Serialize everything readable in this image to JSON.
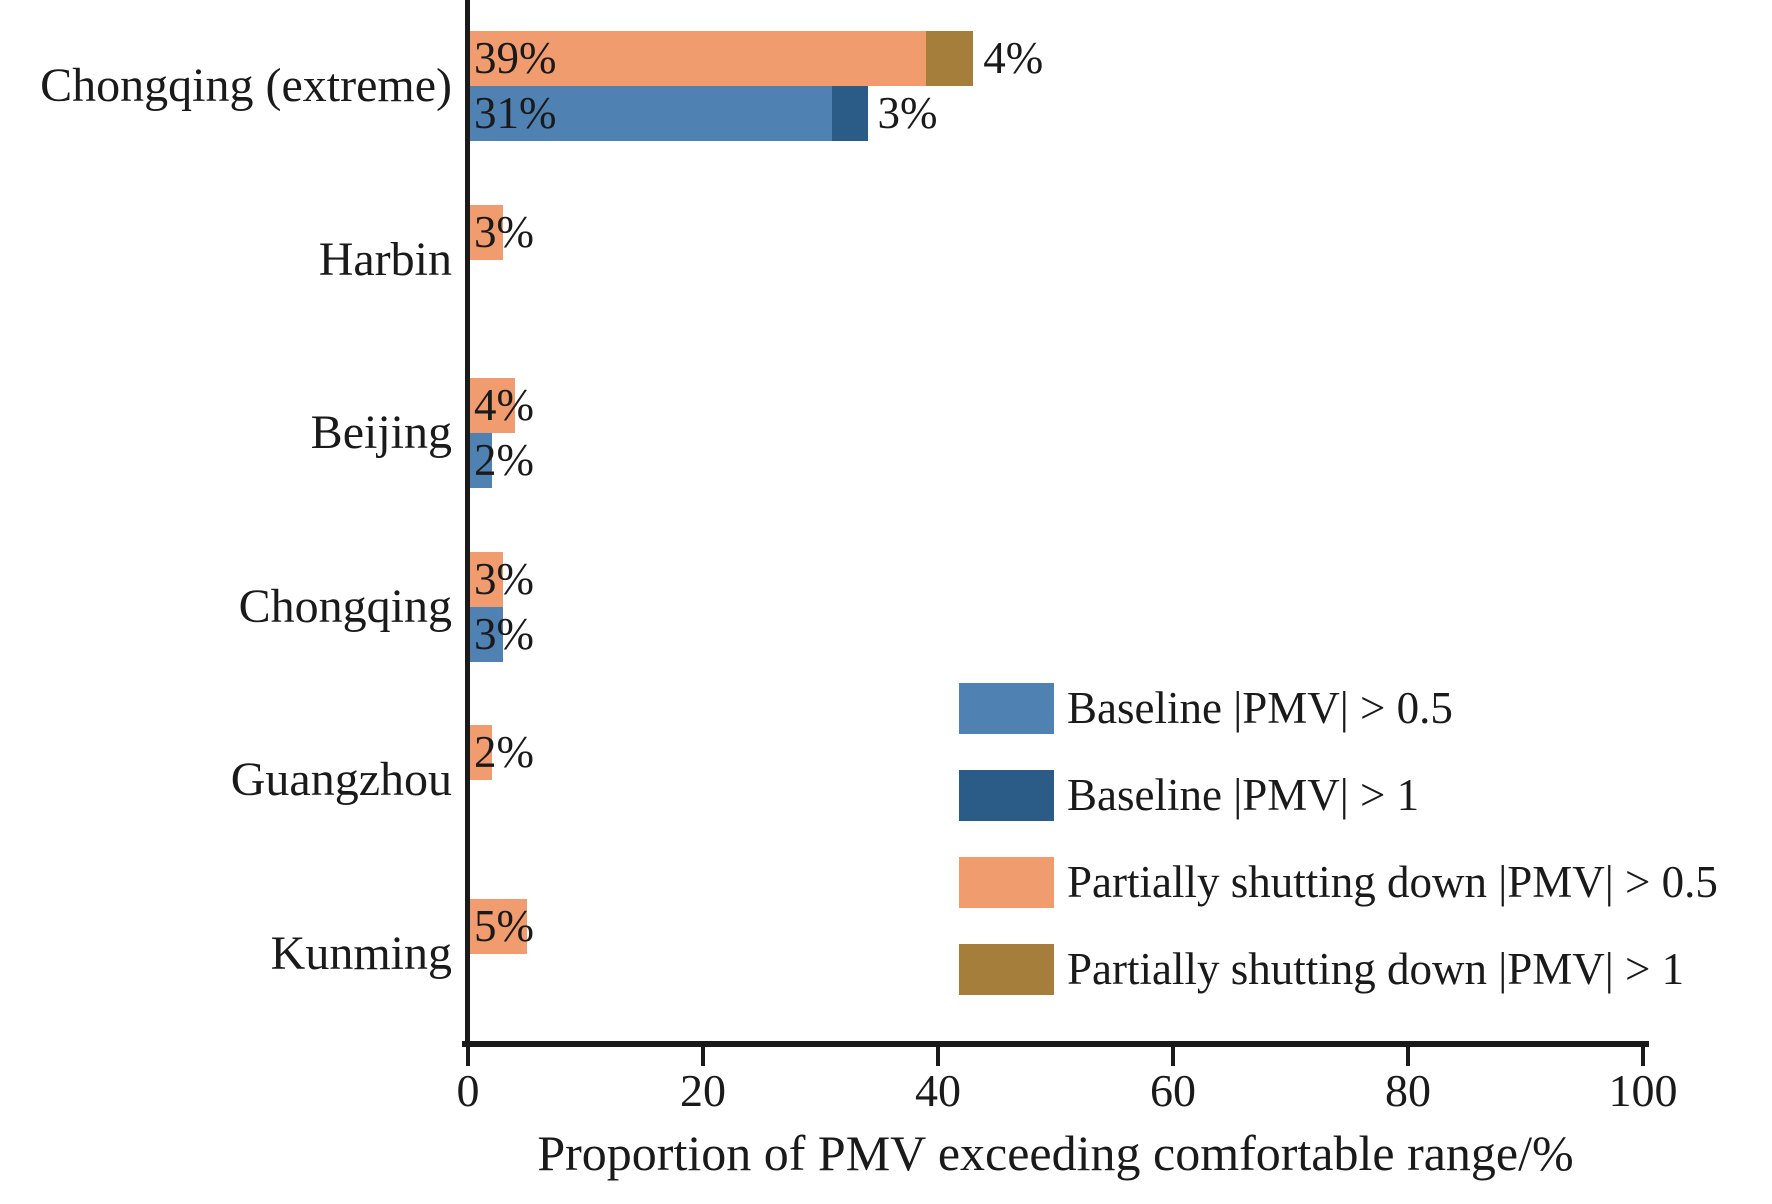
{
  "chart_data": {
    "type": "bar",
    "orientation": "horizontal",
    "title": "",
    "xlabel": "Proportion of PMV exceeding comfortable range/%",
    "xlim": [
      0,
      100
    ],
    "x_ticks": [
      "0",
      "20",
      "40",
      "60",
      "80",
      "100"
    ],
    "x_tick_values": [
      0,
      20,
      40,
      60,
      80,
      100
    ],
    "grid": false,
    "legend_position": "lower-right-inside",
    "value_label_suffix": "%",
    "categories": [
      "Chongqing (extreme)",
      "Harbin",
      "Beijing",
      "Chongqing",
      "Guangzhou",
      "Kunming"
    ],
    "series": [
      {
        "name": "Baseline |PMV| > 0.5",
        "role": "baseline-base",
        "row": "bottom",
        "color": "#4F81B2",
        "values": [
          31,
          0,
          2,
          3,
          0,
          0
        ],
        "labels": [
          "31%",
          "",
          "2%",
          "3%",
          "",
          ""
        ]
      },
      {
        "name": "Baseline |PMV| > 1",
        "role": "baseline-extension",
        "row": "bottom",
        "color": "#2B5B87",
        "values": [
          3,
          0,
          0,
          0,
          0,
          0
        ],
        "labels": [
          "3%",
          "",
          "",
          "",
          "",
          ""
        ]
      },
      {
        "name": "Partially shutting down |PMV| > 0.5",
        "role": "partial-base",
        "row": "top",
        "color": "#F09C6E",
        "values": [
          39,
          3,
          4,
          3,
          2,
          5
        ],
        "labels": [
          "39%",
          "3%",
          "4%",
          "3%",
          "2%",
          "5%"
        ]
      },
      {
        "name": "Partially shutting down |PMV| > 1",
        "role": "partial-extension",
        "row": "top",
        "color": "#A67E3C",
        "values": [
          4,
          0,
          0,
          0,
          0,
          0
        ],
        "labels": [
          "4%",
          "",
          "",
          "",
          "",
          ""
        ]
      }
    ],
    "legend_order": [
      0,
      1,
      2,
      3
    ],
    "axis_color": "#1a1a1a",
    "text_color": "#1a1a1a",
    "background_color": "#ffffff"
  }
}
